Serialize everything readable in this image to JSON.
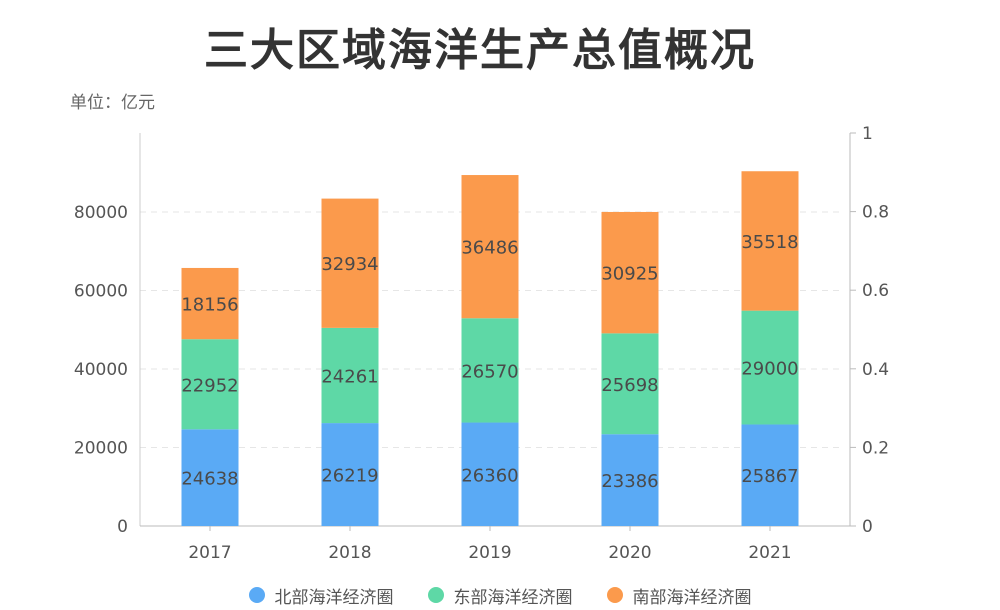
{
  "title": "三大区域海洋生产总值概况",
  "unit_label": "单位：亿元",
  "colors": {
    "north": "#5aaaf5",
    "east": "#5ed8a6",
    "south": "#fb9a4c"
  },
  "chart_data": {
    "type": "bar",
    "stacked": true,
    "categories": [
      "2017",
      "2018",
      "2019",
      "2020",
      "2021"
    ],
    "series": [
      {
        "name": "北部海洋经济圈",
        "values": [
          24638,
          26219,
          26360,
          23386,
          25867
        ]
      },
      {
        "name": "东部海洋经济圈",
        "values": [
          22952,
          24261,
          26570,
          25698,
          29000
        ]
      },
      {
        "name": "南部海洋经济圈",
        "values": [
          18156,
          32934,
          36486,
          30925,
          35518
        ]
      }
    ],
    "ylim": [
      0,
      100000
    ],
    "yticks": [
      "0",
      "20000",
      "40000",
      "60000",
      "80000"
    ],
    "y2lim": [
      0,
      1
    ],
    "y2ticks": [
      "0",
      "0.2",
      "0.4",
      "0.6",
      "0.8",
      "1"
    ],
    "grid": true,
    "legend_position": "bottom"
  }
}
